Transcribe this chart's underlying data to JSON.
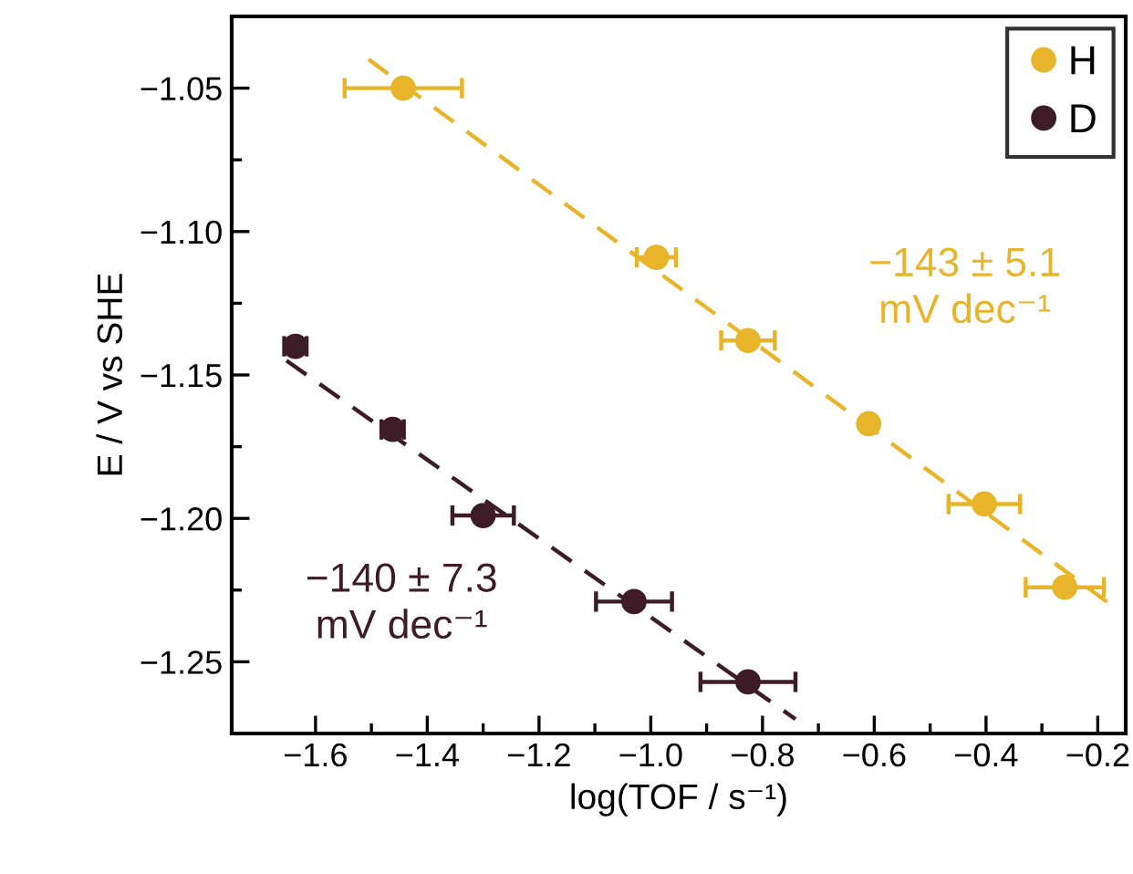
{
  "chart_data": {
    "type": "scatter",
    "xlabel": "log(TOF / s⁻¹)",
    "ylabel": "E / V vs SHE",
    "xlim": [
      -1.75,
      -0.15
    ],
    "ylim": [
      -1.275,
      -1.025
    ],
    "xticks": [
      {
        "value": -1.6,
        "label": "−1.6"
      },
      {
        "value": -1.4,
        "label": "−1.4"
      },
      {
        "value": -1.2,
        "label": "−1.2"
      },
      {
        "value": -1.0,
        "label": "−1.0"
      },
      {
        "value": -0.8,
        "label": "−0.8"
      },
      {
        "value": -0.6,
        "label": "−0.6"
      },
      {
        "value": -0.4,
        "label": "−0.4"
      },
      {
        "value": -0.2,
        "label": "−0.2"
      }
    ],
    "yticks": [
      {
        "value": -1.05,
        "label": "−1.05"
      },
      {
        "value": -1.1,
        "label": "−1.10"
      },
      {
        "value": -1.15,
        "label": "−1.15"
      },
      {
        "value": -1.2,
        "label": "−1.20"
      },
      {
        "value": -1.25,
        "label": "−1.25"
      }
    ],
    "grid": false,
    "legend": "top right",
    "marker": "circle",
    "series": [
      {
        "name": "H",
        "color": "#e8b52a",
        "x": [
          -1.443,
          -0.99,
          -0.826,
          -0.61,
          -0.403,
          -0.259
        ],
        "values": [
          -1.05,
          -1.109,
          -1.138,
          -1.167,
          -1.195,
          -1.224
        ],
        "xerrors": [
          0.105,
          0.035,
          0.048,
          null,
          0.064,
          0.07
        ]
      },
      {
        "name": "D",
        "color": "#3d1c27",
        "x": [
          -1.636,
          -1.462,
          -1.3,
          -1.03,
          -0.826
        ],
        "values": [
          -1.14,
          -1.169,
          -1.199,
          -1.229,
          -1.257
        ],
        "xerrors": [
          0.02,
          0.02,
          0.055,
          0.068,
          0.085
        ]
      },
      {
        "type": "line",
        "color": "#e8b52a",
        "line_style": "dashed",
        "marker": "none",
        "x": [
          -1.505,
          -0.177
        ],
        "values": [
          -1.04,
          -1.23
        ]
      },
      {
        "type": "line",
        "color": "#3d1c27",
        "line_style": "dashed",
        "marker": "none",
        "x": [
          -1.652,
          -0.741
        ],
        "values": [
          -1.145,
          -1.27
        ]
      }
    ],
    "annotations": [
      "−143 ± 5.1\nmV dec⁻¹",
      "−140 ± 7.3\nmV dec⁻¹"
    ]
  }
}
